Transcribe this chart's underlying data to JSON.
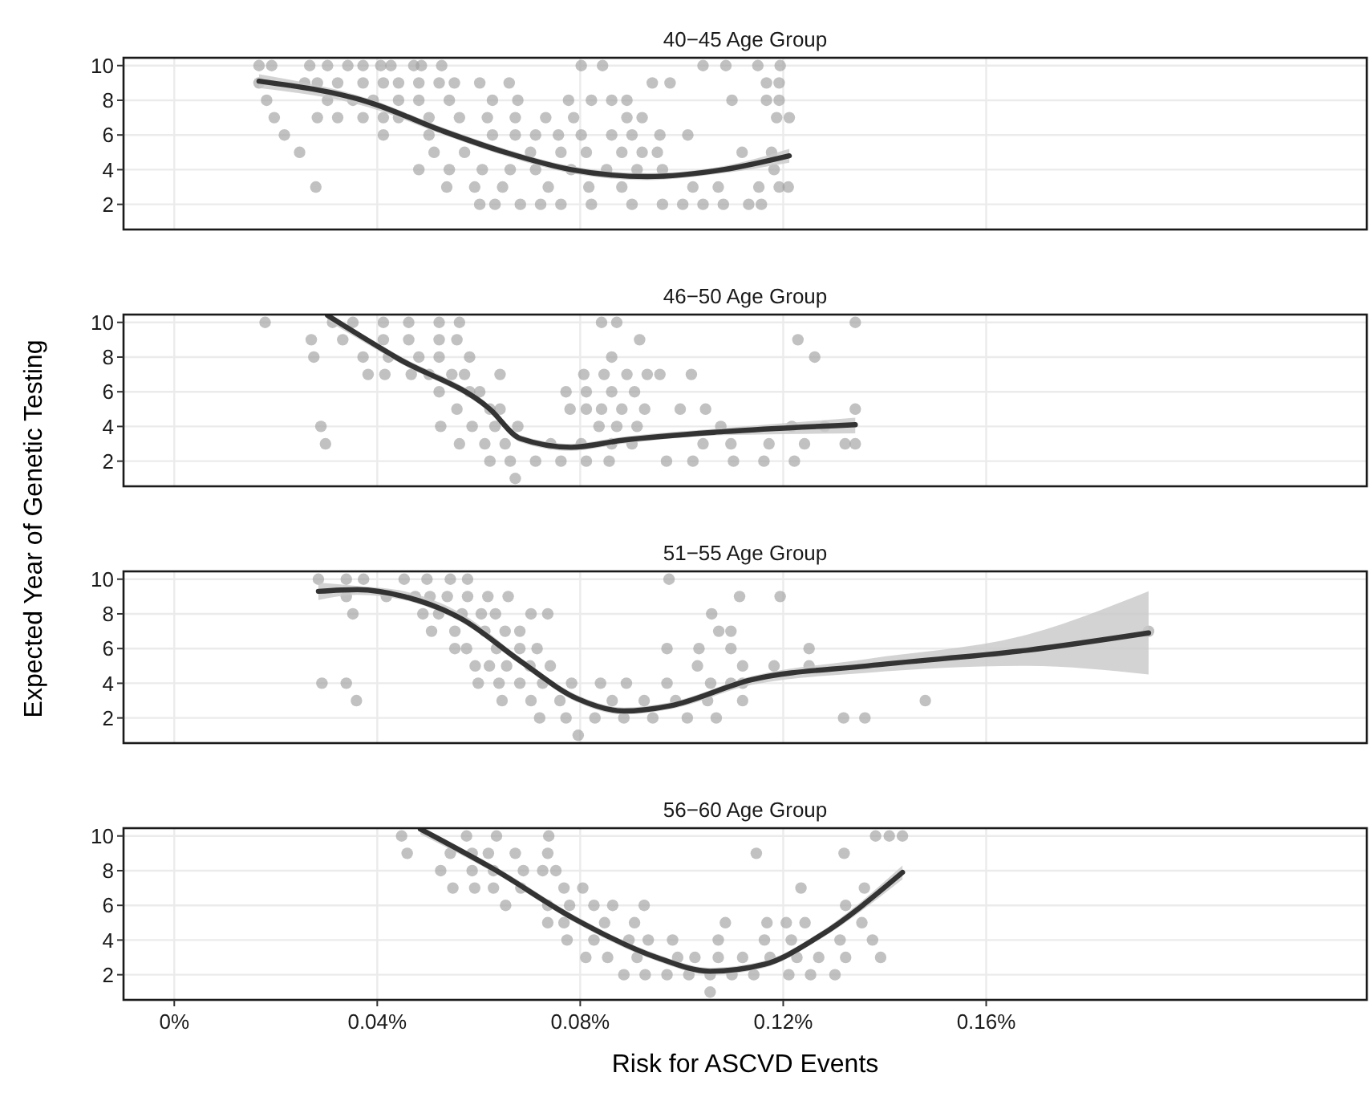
{
  "chart_data": [
    {
      "type": "scatter",
      "title": "40−45 Age Group",
      "ylabel": "Expected Year of Genetic Testing",
      "xlim": [
        -0.01,
        0.235
      ],
      "ylim": [
        0.55,
        10.45
      ],
      "yticks": [
        2,
        4,
        6,
        8,
        10
      ],
      "grid": true,
      "tick_labels": "y",
      "series": [
        {
          "marker": "circle",
          "color": "#a0a0a0",
          "x": [
            0.0167,
            0.0192,
            0.0267,
            0.0302,
            0.0342,
            0.0372,
            0.0407,
            0.0427,
            0.0472,
            0.0487,
            0.0527,
            0.0802,
            0.0844,
            0.1042,
            0.1087,
            0.115,
            0.1194,
            0.0167,
            0.0257,
            0.0282,
            0.0322,
            0.0372,
            0.0412,
            0.0442,
            0.0482,
            0.0522,
            0.0552,
            0.0602,
            0.066,
            0.0942,
            0.0977,
            0.1167,
            0.1192,
            0.0182,
            0.0302,
            0.0352,
            0.0392,
            0.0442,
            0.0482,
            0.0542,
            0.0627,
            0.0677,
            0.0777,
            0.0822,
            0.0862,
            0.0892,
            0.1099,
            0.1167,
            0.1192,
            0.0197,
            0.0282,
            0.0322,
            0.0372,
            0.0412,
            0.0442,
            0.0502,
            0.0562,
            0.0617,
            0.0672,
            0.0732,
            0.0787,
            0.0892,
            0.0922,
            0.1187,
            0.1212,
            0.0217,
            0.0412,
            0.0502,
            0.0627,
            0.0672,
            0.0712,
            0.0757,
            0.0802,
            0.0862,
            0.0902,
            0.0957,
            0.1012,
            0.0247,
            0.0512,
            0.0572,
            0.0702,
            0.0762,
            0.0812,
            0.0882,
            0.0922,
            0.0952,
            0.1119,
            0.1177,
            0.0482,
            0.0542,
            0.0607,
            0.0662,
            0.0712,
            0.0782,
            0.0852,
            0.0912,
            0.0962,
            0.1182,
            0.0279,
            0.0537,
            0.0592,
            0.0647,
            0.0737,
            0.0817,
            0.0882,
            0.1022,
            0.1072,
            0.1152,
            0.1192,
            0.121,
            0.0602,
            0.0632,
            0.0682,
            0.0722,
            0.0762,
            0.0822,
            0.0902,
            0.0962,
            0.1002,
            0.1042,
            0.1082,
            0.1132,
            0.1157
          ],
          "values": [
            10,
            10,
            10,
            10,
            10,
            10,
            10,
            10,
            10,
            10,
            10,
            10,
            10,
            10,
            10,
            10,
            10,
            9,
            9,
            9,
            9,
            9,
            9,
            9,
            9,
            9,
            9,
            9,
            9,
            9,
            9,
            9,
            9,
            8,
            8,
            8,
            8,
            8,
            8,
            8,
            8,
            8,
            8,
            8,
            8,
            8,
            8,
            8,
            8,
            7,
            7,
            7,
            7,
            7,
            7,
            7,
            7,
            7,
            7,
            7,
            7,
            7,
            7,
            7,
            7,
            6,
            6,
            6,
            6,
            6,
            6,
            6,
            6,
            6,
            6,
            6,
            6,
            5,
            5,
            5,
            5,
            5,
            5,
            5,
            5,
            5,
            5,
            5,
            4,
            4,
            4,
            4,
            4,
            4,
            4,
            4,
            4,
            4,
            3,
            3,
            3,
            3,
            3,
            3,
            3,
            3,
            3,
            3,
            3,
            3,
            2,
            2,
            2,
            2,
            2,
            2,
            2,
            2,
            2,
            2,
            2,
            2,
            2
          ]
        },
        {
          "type": "line",
          "color": "#333333",
          "x": [
            0.0167,
            0.0382,
            0.0532,
            0.0652,
            0.0782,
            0.0932,
            0.1082,
            0.1212
          ],
          "values": [
            9.1,
            7.9,
            6.2,
            5.0,
            4.0,
            3.6,
            4.0,
            4.8
          ],
          "lower": [
            8.7,
            7.6,
            6.0,
            4.8,
            3.8,
            3.4,
            3.8,
            4.4
          ],
          "upper": [
            9.5,
            8.1,
            6.4,
            5.2,
            4.2,
            3.8,
            4.2,
            5.2
          ]
        }
      ]
    },
    {
      "type": "scatter",
      "title": "46−50 Age Group",
      "xlim": [
        -0.01,
        0.235
      ],
      "ylim": [
        0.55,
        10.45
      ],
      "yticks": [
        2,
        4,
        6,
        8,
        10
      ],
      "grid": true,
      "tick_labels": "y",
      "series": [
        {
          "marker": "circle",
          "color": "#a0a0a0",
          "x": [
            0.0179,
            0.0312,
            0.0352,
            0.0412,
            0.0462,
            0.0522,
            0.0562,
            0.0842,
            0.0872,
            0.1342,
            0.027,
            0.0332,
            0.0412,
            0.0462,
            0.0522,
            0.0557,
            0.0917,
            0.1229,
            0.0275,
            0.0372,
            0.0422,
            0.0482,
            0.0522,
            0.0582,
            0.0862,
            0.1262,
            0.0382,
            0.0415,
            0.0467,
            0.0502,
            0.0547,
            0.0572,
            0.0642,
            0.0807,
            0.0847,
            0.0892,
            0.0932,
            0.0957,
            0.1019,
            0.0522,
            0.0582,
            0.0602,
            0.0772,
            0.0812,
            0.0862,
            0.0907,
            0.0557,
            0.0622,
            0.0642,
            0.078,
            0.0812,
            0.0842,
            0.0882,
            0.0927,
            0.0997,
            0.1047,
            0.1342,
            0.0289,
            0.0525,
            0.0587,
            0.0632,
            0.0677,
            0.0837,
            0.0872,
            0.0912,
            0.1077,
            0.1217,
            0.1282,
            0.0298,
            0.0562,
            0.0612,
            0.0652,
            0.0742,
            0.0802,
            0.0862,
            0.0902,
            0.1042,
            0.1097,
            0.1172,
            0.1242,
            0.1322,
            0.1342,
            0.0622,
            0.0662,
            0.0712,
            0.0762,
            0.0812,
            0.0857,
            0.097,
            0.1022,
            0.1102,
            0.1162,
            0.1222,
            0.0672
          ],
          "values": [
            10,
            10,
            10,
            10,
            10,
            10,
            10,
            10,
            10,
            10,
            9,
            9,
            9,
            9,
            9,
            9,
            9,
            9,
            8,
            8,
            8,
            8,
            8,
            8,
            8,
            8,
            7,
            7,
            7,
            7,
            7,
            7,
            7,
            7,
            7,
            7,
            7,
            7,
            7,
            6,
            6,
            6,
            6,
            6,
            6,
            6,
            5,
            5,
            5,
            5,
            5,
            5,
            5,
            5,
            5,
            5,
            5,
            4,
            4,
            4,
            4,
            4,
            4,
            4,
            4,
            4,
            4,
            4,
            3,
            3,
            3,
            3,
            3,
            3,
            3,
            3,
            3,
            3,
            3,
            3,
            3,
            3,
            2,
            2,
            2,
            2,
            2,
            2,
            2,
            2,
            2,
            2,
            2,
            1
          ]
        },
        {
          "type": "line",
          "color": "#333333",
          "x": [
            0.0302,
            0.0442,
            0.0622,
            0.0682,
            0.0782,
            0.0882,
            0.1082,
            0.1342
          ],
          "values": [
            10.4,
            7.9,
            5.0,
            3.3,
            2.8,
            3.2,
            3.7,
            4.1
          ],
          "lower": [
            10.1,
            7.7,
            4.8,
            3.1,
            2.6,
            3.0,
            3.5,
            3.6
          ],
          "upper": [
            10.45,
            8.1,
            5.2,
            3.5,
            3.0,
            3.4,
            3.9,
            4.5
          ]
        }
      ]
    },
    {
      "type": "scatter",
      "title": "51−55 Age Group",
      "xlim": [
        -0.01,
        0.235
      ],
      "ylim": [
        0.55,
        10.45
      ],
      "yticks": [
        2,
        4,
        6,
        8,
        10
      ],
      "grid": true,
      "tick_labels": "y",
      "series": [
        {
          "marker": "circle",
          "color": "#a0a0a0",
          "x": [
            0.0284,
            0.0339,
            0.0373,
            0.0453,
            0.0498,
            0.0544,
            0.0578,
            0.0975,
            0.0339,
            0.0418,
            0.0475,
            0.0504,
            0.0538,
            0.0578,
            0.0618,
            0.0658,
            0.1114,
            0.1194,
            0.0352,
            0.049,
            0.0521,
            0.0567,
            0.0605,
            0.0633,
            0.0703,
            0.0736,
            0.1059,
            0.0507,
            0.0553,
            0.0612,
            0.0652,
            0.0681,
            0.1073,
            0.1097,
            0.192,
            0.0553,
            0.0576,
            0.0635,
            0.0681,
            0.0715,
            0.0971,
            0.1034,
            0.1097,
            0.1251,
            0.0593,
            0.0621,
            0.0655,
            0.0701,
            0.0741,
            0.1031,
            0.112,
            0.1182,
            0.1251,
            0.0291,
            0.0339,
            0.0599,
            0.064,
            0.0681,
            0.0726,
            0.0783,
            0.084,
            0.0891,
            0.0971,
            0.1057,
            0.1097,
            0.112,
            0.0359,
            0.0646,
            0.0703,
            0.076,
            0.0863,
            0.0926,
            0.0988,
            0.1051,
            0.112,
            0.148,
            0.072,
            0.0772,
            0.0829,
            0.0886,
            0.0943,
            0.1011,
            0.1068,
            0.1319,
            0.1361,
            0.0796
          ],
          "values": [
            10,
            10,
            10,
            10,
            10,
            10,
            10,
            10,
            9,
            9,
            9,
            9,
            9,
            9,
            9,
            9,
            9,
            9,
            8,
            8,
            8,
            8,
            8,
            8,
            8,
            8,
            8,
            7,
            7,
            7,
            7,
            7,
            7,
            7,
            7,
            6,
            6,
            6,
            6,
            6,
            6,
            6,
            6,
            6,
            5,
            5,
            5,
            5,
            5,
            5,
            5,
            5,
            5,
            4,
            4,
            4,
            4,
            4,
            4,
            4,
            4,
            4,
            4,
            4,
            4,
            4,
            3,
            3,
            3,
            3,
            3,
            3,
            3,
            3,
            3,
            3,
            2,
            2,
            2,
            2,
            2,
            2,
            2,
            2,
            2,
            1
          ]
        },
        {
          "type": "line",
          "color": "#333333",
          "x": [
            0.0284,
            0.0361,
            0.0453,
            0.0567,
            0.0681,
            0.0795,
            0.0886,
            0.0977,
            0.1137,
            0.1365,
            0.168,
            0.192
          ],
          "values": [
            9.3,
            9.4,
            9.0,
            7.7,
            5.3,
            3.1,
            2.4,
            2.7,
            4.2,
            5.0,
            5.9,
            6.9
          ],
          "lower": [
            8.8,
            9.1,
            8.8,
            7.5,
            5.1,
            2.9,
            2.2,
            2.5,
            3.9,
            4.6,
            5.0,
            4.5
          ],
          "upper": [
            9.8,
            9.6,
            9.3,
            8.0,
            5.5,
            3.3,
            2.6,
            2.9,
            4.4,
            5.4,
            6.8,
            9.3
          ]
        }
      ]
    },
    {
      "type": "scatter",
      "title": "56−60 Age Group",
      "xlabel": "Risk for ASCVD Events",
      "xlim": [
        -0.01,
        0.235
      ],
      "ylim": [
        0.55,
        10.45
      ],
      "xticks": [
        {
          "value": 0,
          "label": "0%"
        },
        {
          "value": 0.04,
          "label": "0.04%"
        },
        {
          "value": 0.08,
          "label": "0.08%"
        },
        {
          "value": 0.12,
          "label": "0.12%"
        },
        {
          "value": 0.16,
          "label": "0.16%"
        }
      ],
      "yticks": [
        2,
        4,
        6,
        8,
        10
      ],
      "grid": true,
      "series": [
        {
          "marker": "circle",
          "color": "#a0a0a0",
          "x": [
            0.0448,
            0.0576,
            0.0635,
            0.0738,
            0.1382,
            0.1409,
            0.1435,
            0.0459,
            0.0544,
            0.0587,
            0.0619,
            0.0672,
            0.0736,
            0.1147,
            0.132,
            0.0525,
            0.0587,
            0.0629,
            0.0688,
            0.0726,
            0.0752,
            0.0549,
            0.0592,
            0.0629,
            0.0683,
            0.0768,
            0.0805,
            0.1235,
            0.136,
            0.0653,
            0.0736,
            0.0779,
            0.0827,
            0.0864,
            0.0926,
            0.1323,
            0.0736,
            0.0768,
            0.0848,
            0.0907,
            0.1086,
            0.1168,
            0.1206,
            0.1243,
            0.1355,
            0.0774,
            0.0827,
            0.0896,
            0.0934,
            0.0982,
            0.1072,
            0.1163,
            0.1216,
            0.1312,
            0.1376,
            0.0811,
            0.0854,
            0.0912,
            0.0992,
            0.1026,
            0.1072,
            0.112,
            0.1174,
            0.1227,
            0.127,
            0.1323,
            0.1392,
            0.0886,
            0.0928,
            0.0971,
            0.1014,
            0.1056,
            0.1099,
            0.1142,
            0.1211,
            0.1254,
            0.1302,
            0.1056
          ],
          "values": [
            10,
            10,
            10,
            10,
            10,
            10,
            10,
            9,
            9,
            9,
            9,
            9,
            9,
            9,
            9,
            8,
            8,
            8,
            8,
            8,
            8,
            7,
            7,
            7,
            7,
            7,
            7,
            7,
            7,
            6,
            6,
            6,
            6,
            6,
            6,
            6,
            5,
            5,
            5,
            5,
            5,
            5,
            5,
            5,
            5,
            4,
            4,
            4,
            4,
            4,
            4,
            4,
            4,
            4,
            4,
            3,
            3,
            3,
            3,
            3,
            3,
            3,
            3,
            3,
            3,
            3,
            3,
            2,
            2,
            2,
            2,
            2,
            2,
            2,
            2,
            2,
            2,
            1
          ]
        },
        {
          "type": "line",
          "color": "#333333",
          "x": [
            0.0485,
            0.0629,
            0.079,
            0.095,
            0.1056,
            0.1163,
            0.127,
            0.1435
          ],
          "values": [
            10.4,
            8.1,
            5.2,
            3.0,
            2.2,
            2.6,
            4.2,
            7.9
          ],
          "lower": [
            10.1,
            7.9,
            5.0,
            2.8,
            2.0,
            2.4,
            4.0,
            7.5
          ],
          "upper": [
            10.45,
            8.3,
            5.4,
            3.2,
            2.4,
            2.8,
            4.4,
            8.3
          ]
        }
      ]
    }
  ]
}
